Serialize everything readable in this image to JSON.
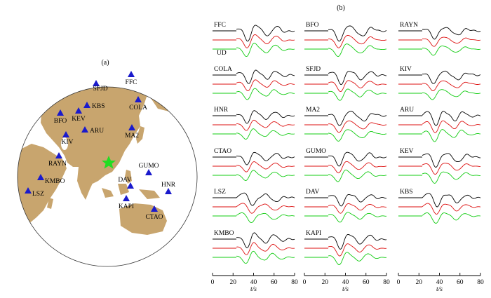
{
  "panel_a": {
    "label": "(a)",
    "stations": [
      {
        "code": "SFJD"
      },
      {
        "code": "FFC"
      },
      {
        "code": "KBS"
      },
      {
        "code": "COLA"
      },
      {
        "code": "BFO"
      },
      {
        "code": "KEV"
      },
      {
        "code": "ARU"
      },
      {
        "code": "KIV"
      },
      {
        "code": "MA2"
      },
      {
        "code": "RAYN"
      },
      {
        "code": "GUMO"
      },
      {
        "code": "KMBO"
      },
      {
        "code": "DAV"
      },
      {
        "code": "HNR"
      },
      {
        "code": "LSZ"
      },
      {
        "code": "KAPI"
      },
      {
        "code": "CTAO"
      }
    ],
    "colors": {
      "land": "#c8a56e",
      "ocean": "#ffffff",
      "station": "#1a1acc",
      "epicenter": "#22dd22",
      "border": "#333333"
    },
    "epicenter_icon": "star-icon",
    "station_icon": "triangle-icon"
  },
  "panel_b": {
    "label": "(b)",
    "component_label": "UD",
    "trace_colors": [
      "#000000",
      "#dd1111",
      "#11cc11"
    ],
    "x_axis": {
      "label": "t/s",
      "ticks": [
        "0",
        "20",
        "40",
        "60",
        "80"
      ],
      "range": [
        0,
        80
      ]
    },
    "columns": [
      [
        "FFC",
        "COLA",
        "HNR",
        "CTAO",
        "LSZ",
        "KMBO"
      ],
      [
        "BFO",
        "SFJD",
        "MA2",
        "GUMO",
        "DAV",
        "KAPI"
      ],
      [
        "RAYN",
        "KIV",
        "ARU",
        "KEV",
        "KBS"
      ]
    ]
  }
}
